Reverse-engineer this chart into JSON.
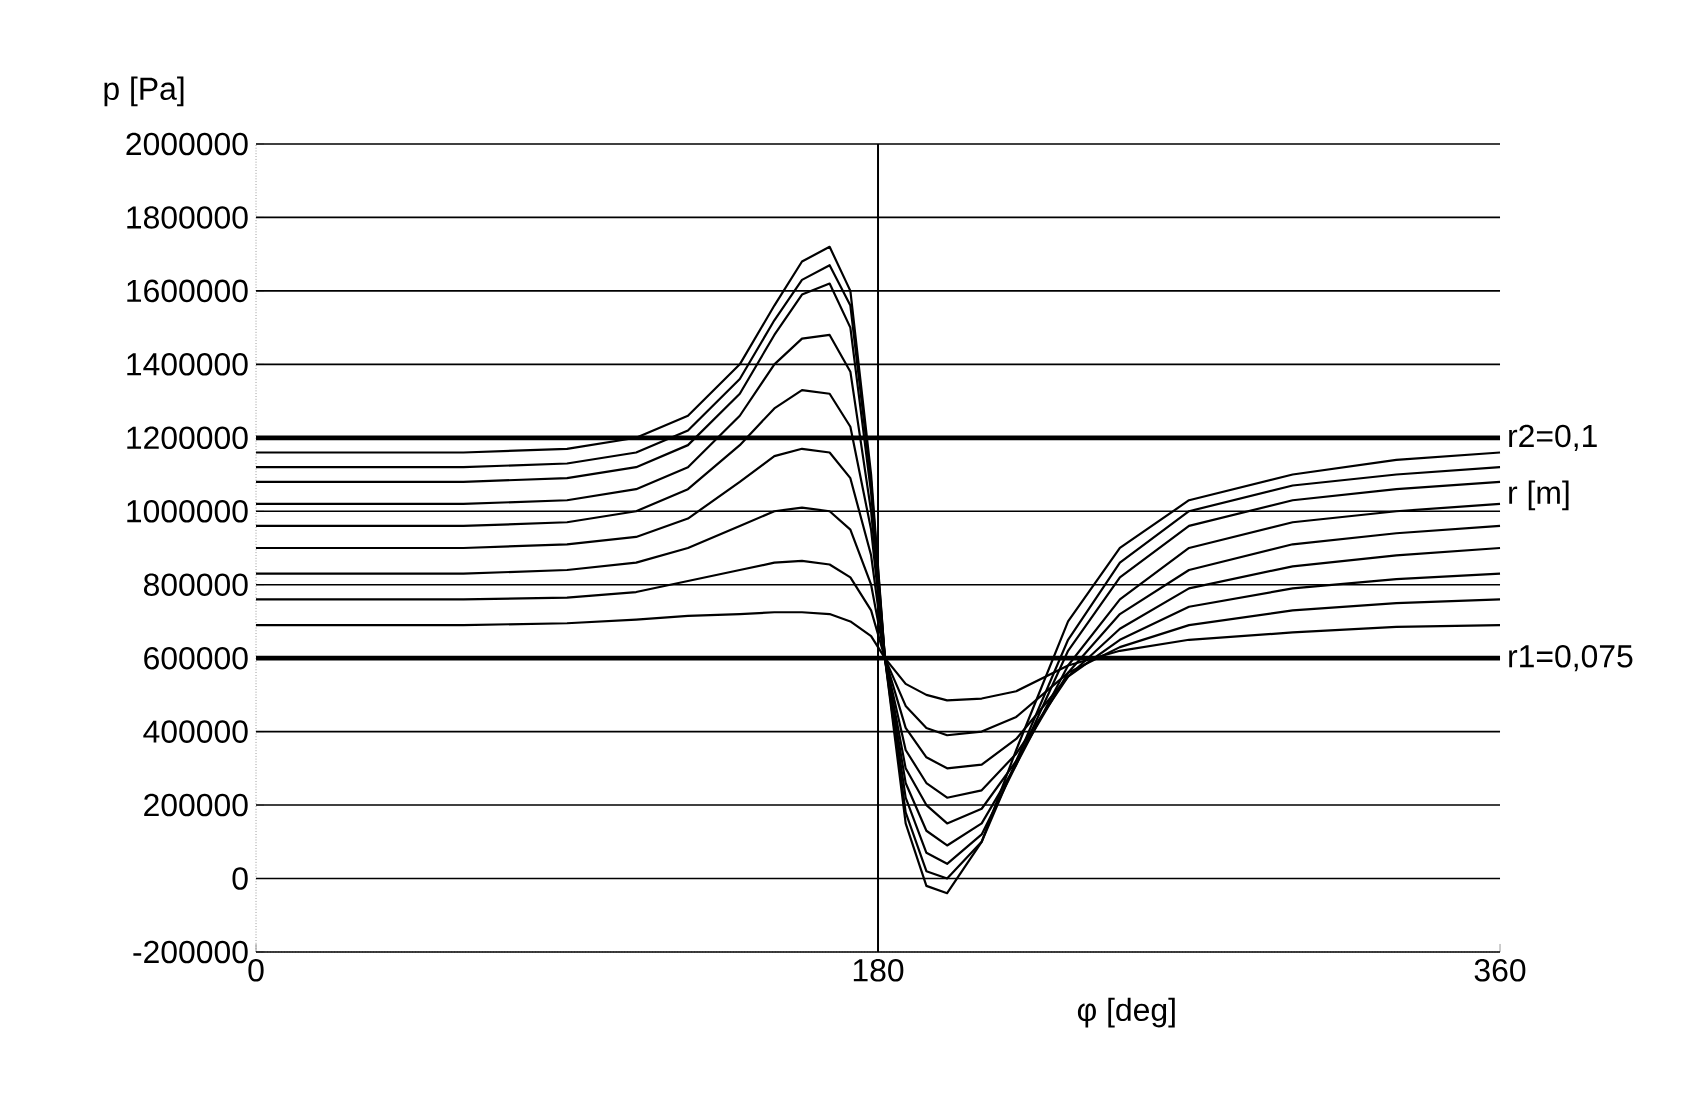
{
  "chart_data": {
    "type": "line",
    "xlabel": "φ [deg]",
    "ylabel": "p [Pa]",
    "xlim": [
      0,
      360
    ],
    "xticks": [
      0,
      180,
      360
    ],
    "ylim": [
      -200000,
      2000000
    ],
    "yticks": [
      -200000,
      0,
      200000,
      400000,
      600000,
      800000,
      1000000,
      1200000,
      1400000,
      1600000,
      1800000,
      2000000
    ],
    "grid": "y",
    "marker": "none",
    "ref_lines": [
      {
        "axis": "x",
        "value": 180,
        "color": "#000000"
      }
    ],
    "annotations": [
      "r [m]"
    ],
    "x": [
      0,
      60,
      90,
      110,
      125,
      140,
      150,
      158,
      166,
      172,
      178,
      182,
      188,
      194,
      200,
      210,
      220,
      235,
      250,
      270,
      300,
      330,
      360
    ],
    "series": [
      {
        "name": "r2=0,1",
        "color": "#000000",
        "values": [
          1200000,
          1200000,
          1200000,
          1200000,
          1200000,
          1200000,
          1200000,
          1200000,
          1200000,
          1200000,
          1200000,
          1200000,
          1200000,
          1200000,
          1200000,
          1200000,
          1200000,
          1200000,
          1200000,
          1200000,
          1200000,
          1200000,
          1200000
        ]
      },
      {
        "color": "#000000",
        "values": [
          1160000,
          1160000,
          1170000,
          1200000,
          1260000,
          1400000,
          1560000,
          1680000,
          1720000,
          1600000,
          1100000,
          600000,
          150000,
          -20000,
          -40000,
          100000,
          350000,
          700000,
          900000,
          1030000,
          1100000,
          1140000,
          1160000
        ]
      },
      {
        "color": "#000000",
        "values": [
          1120000,
          1120000,
          1130000,
          1160000,
          1220000,
          1360000,
          1520000,
          1630000,
          1670000,
          1560000,
          1080000,
          600000,
          180000,
          20000,
          0,
          100000,
          320000,
          650000,
          860000,
          1000000,
          1070000,
          1100000,
          1120000
        ]
      },
      {
        "color": "#000000",
        "values": [
          1080000,
          1080000,
          1090000,
          1120000,
          1180000,
          1320000,
          1480000,
          1590000,
          1620000,
          1500000,
          1050000,
          600000,
          220000,
          70000,
          40000,
          120000,
          310000,
          620000,
          820000,
          960000,
          1030000,
          1060000,
          1080000
        ]
      },
      {
        "color": "#000000",
        "values": [
          1020000,
          1020000,
          1030000,
          1060000,
          1120000,
          1260000,
          1400000,
          1470000,
          1480000,
          1380000,
          1000000,
          600000,
          260000,
          130000,
          90000,
          150000,
          310000,
          580000,
          760000,
          900000,
          970000,
          1000000,
          1020000
        ]
      },
      {
        "color": "#000000",
        "values": [
          960000,
          960000,
          970000,
          1000000,
          1060000,
          1180000,
          1280000,
          1330000,
          1320000,
          1230000,
          950000,
          600000,
          300000,
          200000,
          150000,
          190000,
          320000,
          560000,
          720000,
          840000,
          910000,
          940000,
          960000
        ]
      },
      {
        "color": "#000000",
        "values": [
          900000,
          900000,
          910000,
          930000,
          980000,
          1080000,
          1150000,
          1170000,
          1160000,
          1090000,
          880000,
          600000,
          350000,
          260000,
          220000,
          240000,
          340000,
          550000,
          680000,
          790000,
          850000,
          880000,
          900000
        ]
      },
      {
        "color": "#000000",
        "values": [
          830000,
          830000,
          840000,
          860000,
          900000,
          960000,
          1000000,
          1010000,
          1000000,
          950000,
          800000,
          600000,
          410000,
          330000,
          300000,
          310000,
          380000,
          550000,
          650000,
          740000,
          790000,
          815000,
          830000
        ]
      },
      {
        "color": "#000000",
        "values": [
          760000,
          760000,
          765000,
          780000,
          810000,
          840000,
          860000,
          865000,
          855000,
          820000,
          730000,
          600000,
          470000,
          410000,
          390000,
          400000,
          440000,
          560000,
          630000,
          690000,
          730000,
          750000,
          760000
        ]
      },
      {
        "color": "#000000",
        "values": [
          690000,
          690000,
          695000,
          705000,
          715000,
          720000,
          725000,
          725000,
          720000,
          700000,
          660000,
          600000,
          530000,
          500000,
          485000,
          490000,
          510000,
          580000,
          620000,
          650000,
          670000,
          685000,
          690000
        ]
      },
      {
        "name": "r1=0,075",
        "color": "#000000",
        "values": [
          600000,
          600000,
          600000,
          600000,
          600000,
          600000,
          600000,
          600000,
          600000,
          600000,
          600000,
          600000,
          600000,
          600000,
          600000,
          600000,
          600000,
          600000,
          600000,
          600000,
          600000,
          600000,
          600000
        ]
      }
    ]
  }
}
